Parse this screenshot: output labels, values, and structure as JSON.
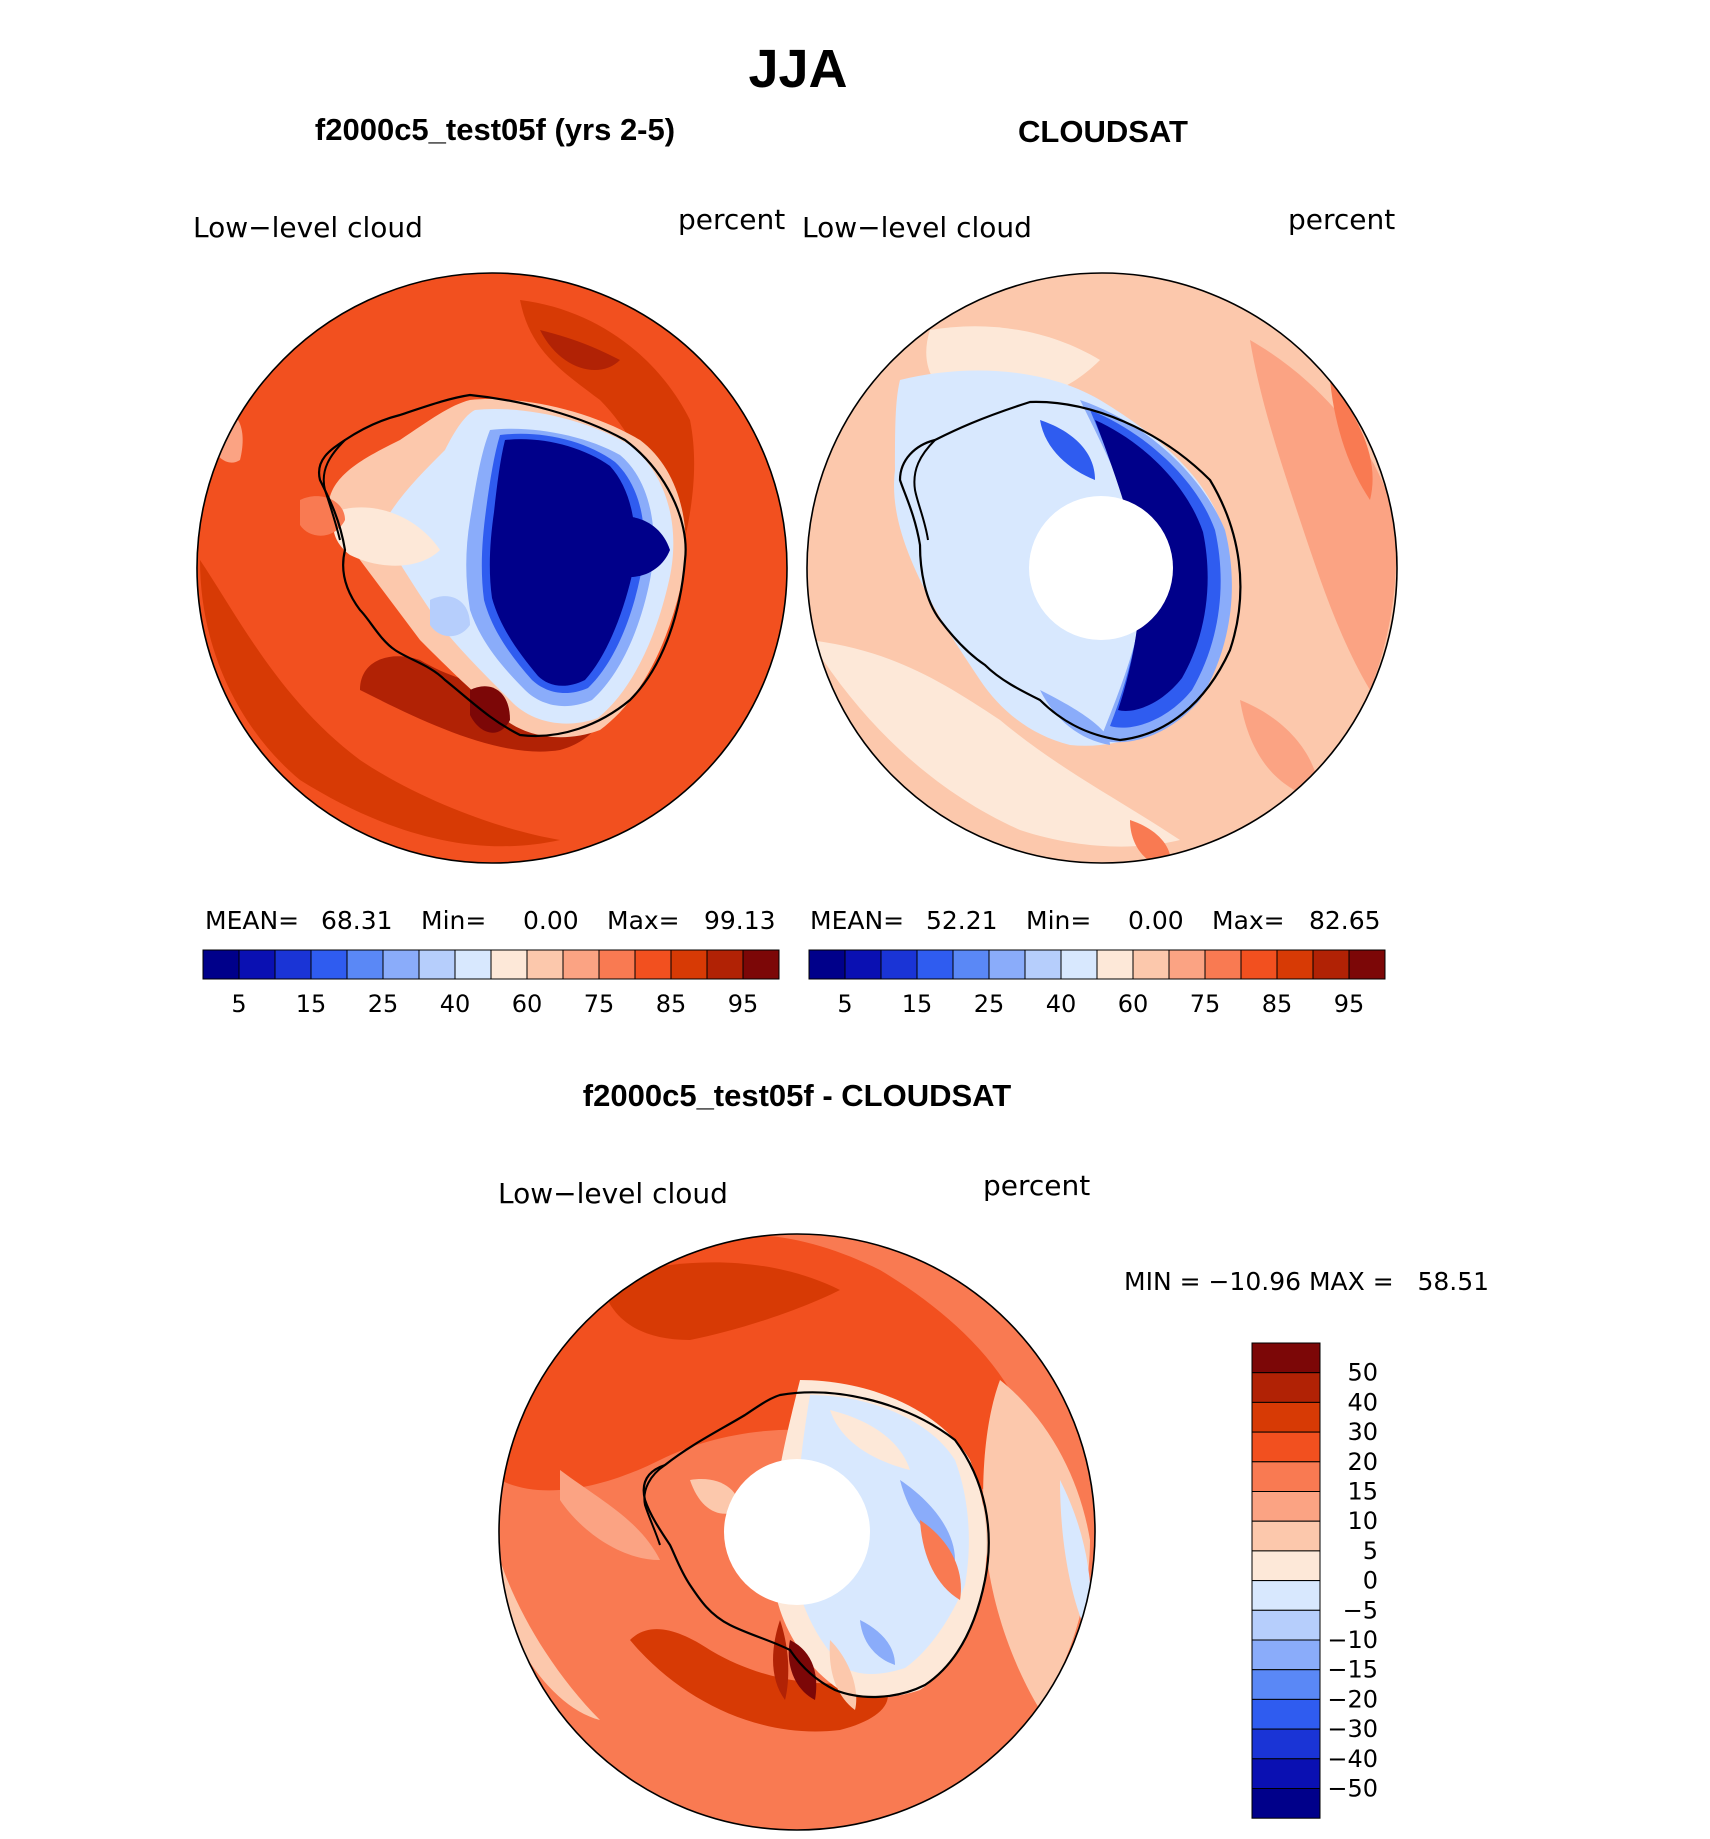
{
  "main_title": "JJA",
  "palette": [
    "#00008a",
    "#0a10b2",
    "#1a34d6",
    "#2f5cf0",
    "#5a88f6",
    "#8aacfa",
    "#b6cefc",
    "#d8e8fe",
    "#fde8d8",
    "#fcc8ac",
    "#fba383",
    "#f97a52",
    "#f2501f",
    "#d73a05",
    "#b12205",
    "#7c0707"
  ],
  "top_left": {
    "title": "f2000c5_test05f (yrs 2-5)",
    "left_label": "Low−level cloud",
    "right_label": "percent",
    "stats": {
      "mean_label": "MEAN=",
      "mean": "68.31",
      "min_label": "Min=",
      "min": "0.00",
      "max_label": "Max=",
      "max": "99.13"
    },
    "colorbar_ticks": [
      "5",
      "15",
      "25",
      "40",
      "60",
      "75",
      "85",
      "95"
    ]
  },
  "top_right": {
    "title": "CLOUDSAT",
    "left_label": "Low−level cloud",
    "right_label": "percent",
    "stats": {
      "mean_label": "MEAN=",
      "mean": "52.21",
      "min_label": "Min=",
      "min": "0.00",
      "max_label": "Max=",
      "max": "82.65"
    },
    "colorbar_ticks": [
      "5",
      "15",
      "25",
      "40",
      "60",
      "75",
      "85",
      "95"
    ]
  },
  "bottom": {
    "title": "f2000c5_test05f - CLOUDSAT",
    "left_label": "Low−level cloud",
    "right_label": "percent",
    "minmax": "MIN = −10.96 MAX =   58.51",
    "colorbar_ticks": [
      "50",
      "40",
      "30",
      "20",
      "15",
      "10",
      "5",
      "0",
      "−5",
      "−10",
      "−15",
      "−20",
      "−30",
      "−40",
      "−50"
    ]
  }
}
